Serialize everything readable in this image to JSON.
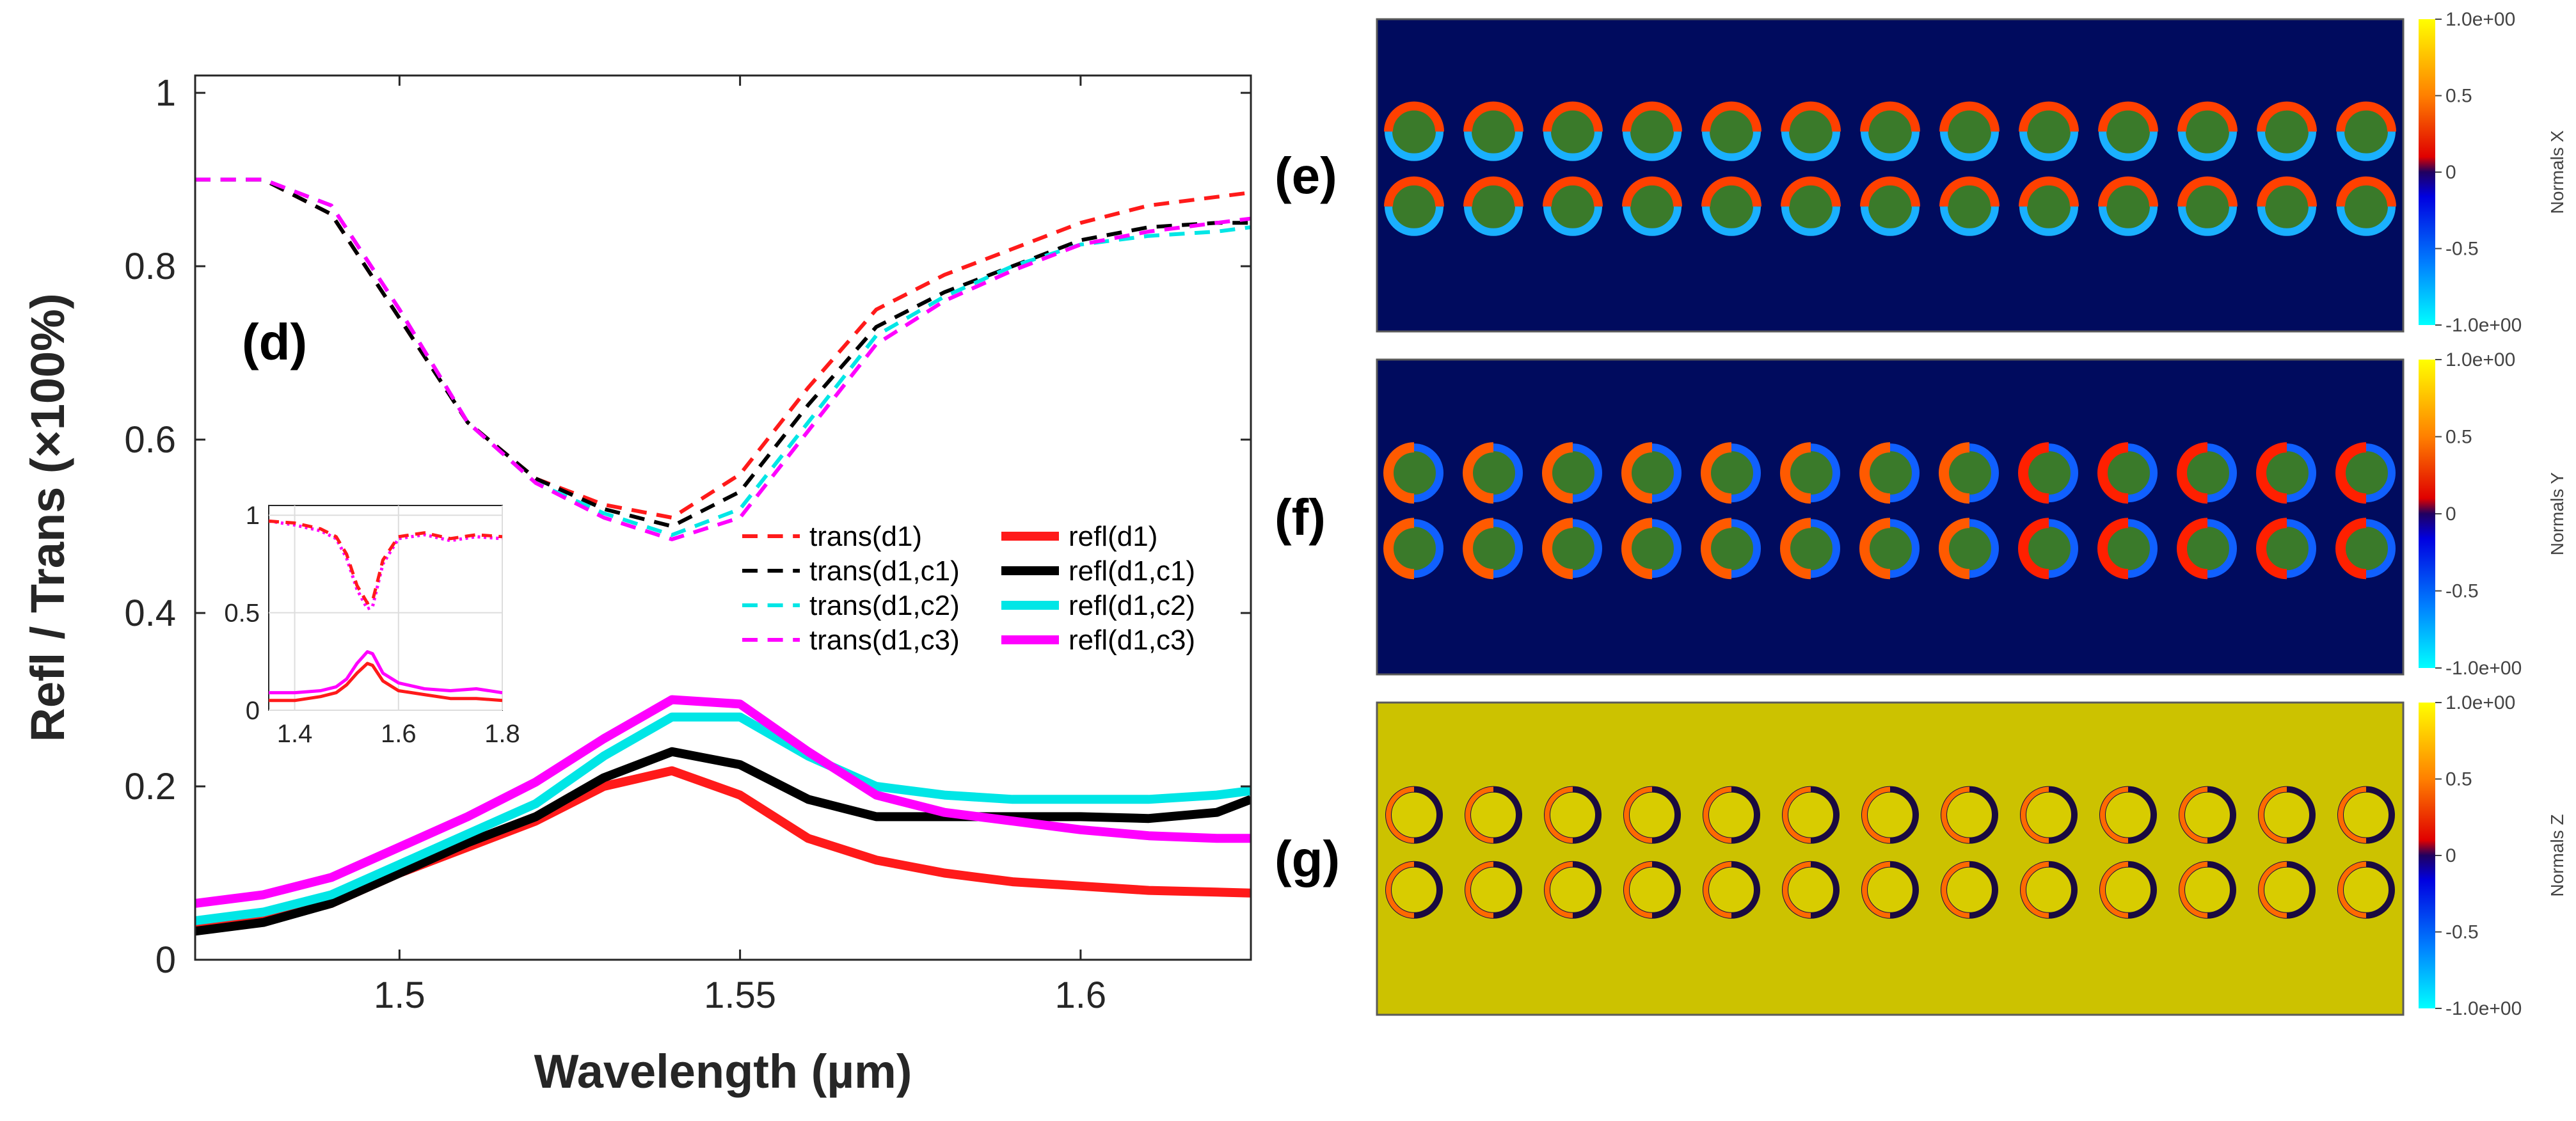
{
  "chart_data": {
    "type": "line",
    "panel_label": "(d)",
    "xlabel": "Wavelength (µm)",
    "ylabel": "Refl / Trans (×100%)",
    "xlim": [
      1.47,
      1.625
    ],
    "ylim": [
      0,
      1.02
    ],
    "xticks": [
      1.5,
      1.55,
      1.6
    ],
    "xtick_labels": [
      "1.5",
      "1.55",
      "1.6"
    ],
    "yticks": [
      0,
      0.2,
      0.4,
      0.6,
      0.8,
      1
    ],
    "ytick_labels": [
      "0",
      "0.2",
      "0.4",
      "0.6",
      "0.8",
      "1"
    ],
    "x": [
      1.47,
      1.48,
      1.49,
      1.5,
      1.51,
      1.52,
      1.53,
      1.54,
      1.55,
      1.56,
      1.57,
      1.58,
      1.59,
      1.6,
      1.61,
      1.62,
      1.625
    ],
    "series": [
      {
        "name": "trans(d1)",
        "style": "dashed",
        "color": "#ff1a1a",
        "values": [
          0.9,
          0.9,
          0.86,
          0.74,
          0.62,
          0.555,
          0.525,
          0.51,
          0.56,
          0.66,
          0.75,
          0.79,
          0.82,
          0.85,
          0.87,
          0.88,
          0.885
        ]
      },
      {
        "name": "trans(d1,c1)",
        "style": "dashed",
        "color": "#000000",
        "values": [
          0.9,
          0.9,
          0.86,
          0.74,
          0.62,
          0.555,
          0.52,
          0.5,
          0.54,
          0.64,
          0.73,
          0.77,
          0.8,
          0.83,
          0.845,
          0.85,
          0.85
        ]
      },
      {
        "name": "trans(d1,c2)",
        "style": "dashed",
        "color": "#00e6e6",
        "values": [
          0.9,
          0.9,
          0.87,
          0.75,
          0.62,
          0.55,
          0.515,
          0.49,
          0.52,
          0.62,
          0.72,
          0.765,
          0.8,
          0.825,
          0.835,
          0.84,
          0.845
        ]
      },
      {
        "name": "trans(d1,c3)",
        "style": "dashed",
        "color": "#ff00ff",
        "values": [
          0.9,
          0.9,
          0.87,
          0.75,
          0.62,
          0.55,
          0.51,
          0.485,
          0.51,
          0.61,
          0.71,
          0.76,
          0.795,
          0.825,
          0.84,
          0.85,
          0.855
        ]
      },
      {
        "name": "refl(d1)",
        "style": "solid",
        "color": "#ff1a1a",
        "values": [
          0.035,
          0.045,
          0.065,
          0.1,
          0.13,
          0.16,
          0.2,
          0.218,
          0.19,
          0.14,
          0.115,
          0.1,
          0.09,
          0.085,
          0.08,
          0.078,
          0.077
        ]
      },
      {
        "name": "refl(d1,c1)",
        "style": "solid",
        "color": "#000000",
        "values": [
          0.033,
          0.043,
          0.065,
          0.1,
          0.135,
          0.165,
          0.21,
          0.24,
          0.225,
          0.185,
          0.165,
          0.165,
          0.165,
          0.165,
          0.163,
          0.17,
          0.185
        ]
      },
      {
        "name": "refl(d1,c2)",
        "style": "solid",
        "color": "#00e6e6",
        "values": [
          0.045,
          0.055,
          0.075,
          0.11,
          0.145,
          0.18,
          0.235,
          0.28,
          0.28,
          0.235,
          0.2,
          0.19,
          0.185,
          0.185,
          0.185,
          0.19,
          0.195
        ]
      },
      {
        "name": "refl(d1,c3)",
        "style": "solid",
        "color": "#ff00ff",
        "values": [
          0.065,
          0.075,
          0.095,
          0.13,
          0.165,
          0.205,
          0.255,
          0.3,
          0.295,
          0.24,
          0.19,
          0.17,
          0.16,
          0.15,
          0.143,
          0.14,
          0.14
        ]
      }
    ],
    "inset": {
      "xlim": [
        1.35,
        1.8
      ],
      "ylim": [
        0,
        1.05
      ],
      "xticks": [
        1.4,
        1.6,
        1.8
      ],
      "xtick_labels": [
        "1.4",
        "1.6",
        "1.8"
      ],
      "yticks": [
        0,
        0.5,
        1
      ],
      "ytick_labels": [
        "0",
        "0.5",
        "1"
      ],
      "x": [
        1.35,
        1.4,
        1.45,
        1.48,
        1.5,
        1.52,
        1.54,
        1.55,
        1.57,
        1.6,
        1.65,
        1.7,
        1.75,
        1.8
      ],
      "series": [
        {
          "name": "trans",
          "style": "dotted",
          "color": "#ff00ff",
          "values": [
            0.97,
            0.95,
            0.92,
            0.88,
            0.78,
            0.62,
            0.52,
            0.53,
            0.75,
            0.88,
            0.9,
            0.87,
            0.89,
            0.88
          ]
        },
        {
          "name": "trans",
          "style": "dashed",
          "color": "#ff1a1a",
          "values": [
            0.97,
            0.96,
            0.93,
            0.89,
            0.8,
            0.64,
            0.55,
            0.56,
            0.77,
            0.89,
            0.91,
            0.88,
            0.9,
            0.89
          ]
        },
        {
          "name": "refl",
          "style": "solid",
          "color": "#ff1a1a",
          "values": [
            0.05,
            0.05,
            0.07,
            0.09,
            0.13,
            0.19,
            0.24,
            0.23,
            0.15,
            0.1,
            0.08,
            0.06,
            0.06,
            0.05
          ]
        },
        {
          "name": "refl",
          "style": "solid",
          "color": "#ff00ff",
          "values": [
            0.09,
            0.09,
            0.1,
            0.12,
            0.16,
            0.24,
            0.3,
            0.29,
            0.19,
            0.14,
            0.11,
            0.1,
            0.11,
            0.09
          ]
        }
      ]
    }
  },
  "field_panels": [
    {
      "label": "(e)",
      "colorbar_title": "Normals X",
      "colorbar_ticks": [
        "1.0e+00",
        "0.5",
        "0",
        "-0.5",
        "-1.0e+00"
      ],
      "background": "#000b5e",
      "rows": 2,
      "cols": 13,
      "pattern": "x"
    },
    {
      "label": "(f)",
      "colorbar_title": "Normals Y",
      "colorbar_ticks": [
        "1.0e+00",
        "0.5",
        "0",
        "-0.5",
        "-1.0e+00"
      ],
      "background": "#000b5e",
      "rows": 2,
      "cols": 13,
      "pattern": "y"
    },
    {
      "label": "(g)",
      "colorbar_title": "Normals Z",
      "colorbar_ticks": [
        "1.0e+00",
        "0.5",
        "0",
        "-0.5",
        "-1.0e+00"
      ],
      "background": "#ccc200",
      "rows": 2,
      "cols": 13,
      "pattern": "z"
    }
  ],
  "colors": {
    "axis": "#262626",
    "grid": "#d9d9d9"
  }
}
